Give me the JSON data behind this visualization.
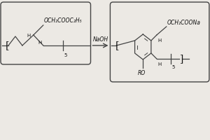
{
  "bg_color": "#ece9e4",
  "line_color": "#444444",
  "text_color": "#111111",
  "fig_width": 3.0,
  "fig_height": 2.0,
  "dpi": 100,
  "left_label": "OCH₂COOC₂H₅",
  "right_label": "OCH₂COONa",
  "RO_label": "RO",
  "NaOH_label": "NaOH",
  "sub5": "5"
}
